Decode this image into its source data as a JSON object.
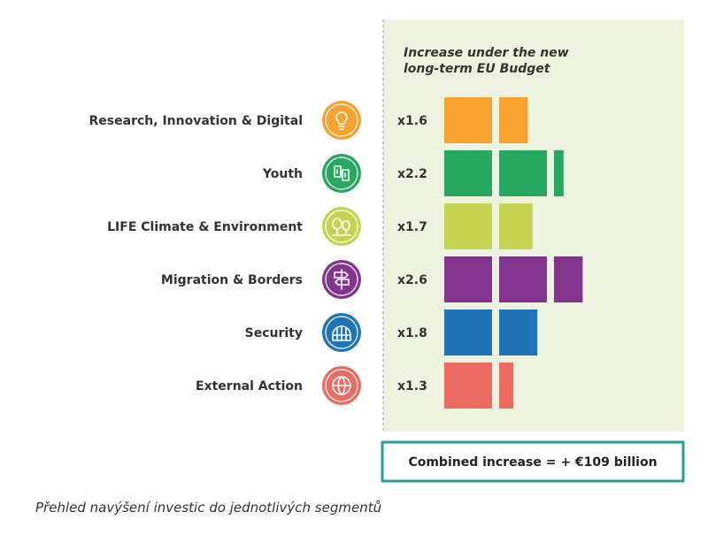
{
  "chart_data": {
    "type": "bar",
    "panel_title": [
      "Increase under the new",
      "long-term EU Budget"
    ],
    "categories": [
      "Research, Innovation & Digital",
      "Youth",
      "LIFE Climate & Environment",
      "Migration & Borders",
      "Security",
      "External Action"
    ],
    "multiplier_labels": [
      "x1.6",
      "x2.2",
      "x1.7",
      "x2.6",
      "x1.8",
      "x1.3"
    ],
    "values": [
      1.6,
      2.2,
      1.7,
      2.6,
      1.8,
      1.3
    ],
    "colors": [
      "#f5a22e",
      "#27a860",
      "#c4d450",
      "#83348f",
      "#1f73b7",
      "#eb6a61"
    ],
    "icons": [
      "lightbulb-icon",
      "people-icon",
      "trees-icon",
      "signpost-icon",
      "shield-dome-icon",
      "globe-pin-icon"
    ],
    "total_label": "Combined increase = + €109 billion"
  },
  "caption": "Přehled navýšení investic do jednotlivých segmentů"
}
